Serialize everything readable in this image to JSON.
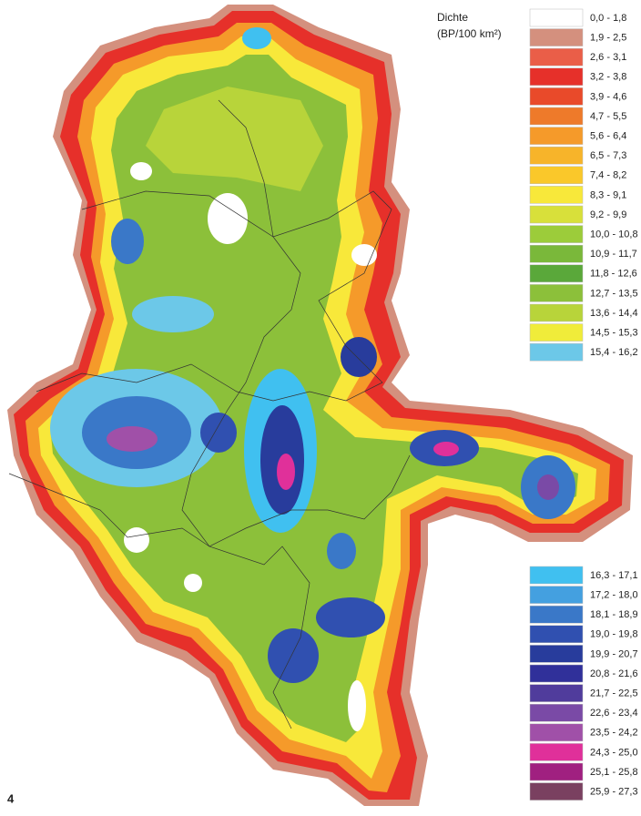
{
  "figure_number": "4",
  "legend": {
    "title": "Dichte",
    "subtitle": "(BP/100 km²)",
    "groups": [
      {
        "items": [
          {
            "label": "0,0 - 1,8",
            "color": "#ffffff"
          },
          {
            "label": "1,9 - 2,5",
            "color": "#d4907e"
          },
          {
            "label": "2,6 - 3,1",
            "color": "#ea5e48"
          },
          {
            "label": "3,2 - 3,8",
            "color": "#e6302a"
          },
          {
            "label": "3,9 - 4,6",
            "color": "#e94a2a"
          },
          {
            "label": "4,7 - 5,5",
            "color": "#ee7a2a"
          },
          {
            "label": "5,6 - 6,4",
            "color": "#f59a2a"
          },
          {
            "label": "6,5 - 7,3",
            "color": "#f7b42a"
          },
          {
            "label": "7,4 - 8,2",
            "color": "#fac82a"
          },
          {
            "label": "8,3 - 9,1",
            "color": "#f8e83a"
          },
          {
            "label": "9,2 - 9,9",
            "color": "#d8e03a"
          },
          {
            "label": "10,0 - 10,8",
            "color": "#9ccc3a"
          },
          {
            "label": "10,9 - 11,7",
            "color": "#7ab83a"
          },
          {
            "label": "11,8 - 12,6",
            "color": "#5aa83a"
          },
          {
            "label": "12,7 - 13,5",
            "color": "#8cc03a"
          },
          {
            "label": "13,6 - 14,4",
            "color": "#b8d43a"
          },
          {
            "label": "14,5 - 15,3",
            "color": "#f0ec3a"
          },
          {
            "label": "15,4 - 16,2",
            "color": "#6cc8e8"
          }
        ]
      },
      {
        "items": [
          {
            "label": "16,3 - 17,1",
            "color": "#40c0f0"
          },
          {
            "label": "17,2 - 18,0",
            "color": "#44a0e0"
          },
          {
            "label": "18,1 - 18,9",
            "color": "#3a78c8"
          },
          {
            "label": "19,0 - 19,8",
            "color": "#3050b0"
          },
          {
            "label": "19,9 - 20,7",
            "color": "#283c9c"
          },
          {
            "label": "20,8 - 21,6",
            "color": "#30309a"
          },
          {
            "label": "21,7 - 22,5",
            "color": "#503c9c"
          },
          {
            "label": "22,6 - 23,4",
            "color": "#7a4aa6"
          },
          {
            "label": "23,5 - 24,2",
            "color": "#a050a8"
          },
          {
            "label": "24,3 - 25,0",
            "color": "#e0309a"
          },
          {
            "label": "25,1 - 25,8",
            "color": "#a02080"
          },
          {
            "label": "25,9 - 27,3",
            "color": "#7a4060"
          }
        ]
      }
    ]
  }
}
